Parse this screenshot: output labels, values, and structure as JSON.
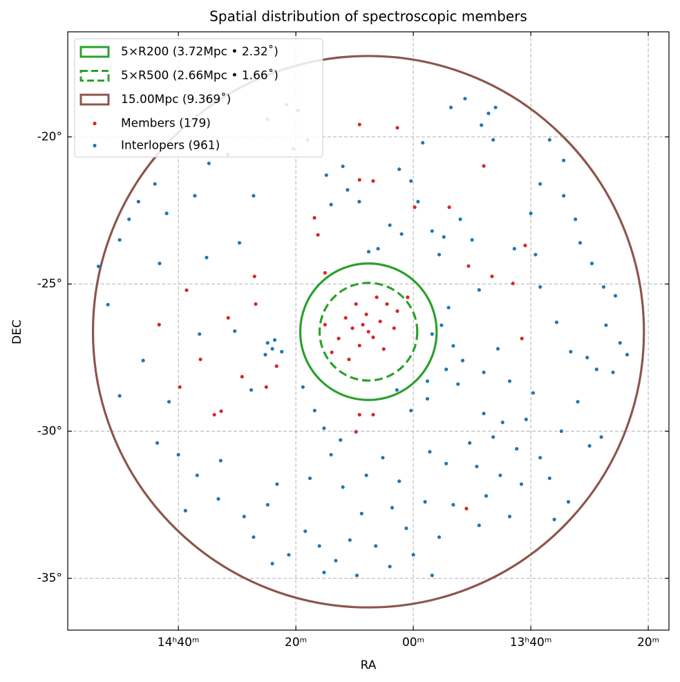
{
  "chart_data": {
    "type": "scatter",
    "title": "Spatial distribution of spectroscopic members",
    "x_label": "RA",
    "y_label": "DEC",
    "xlim": [
      224.71,
      199.12
    ],
    "ylim": [
      -36.76,
      -16.43
    ],
    "xticks": [
      {
        "value": 220,
        "label": "14ʰ40ᵐ"
      },
      {
        "value": 215,
        "label": "20ᵐ"
      },
      {
        "value": 210,
        "label": "00ᵐ"
      },
      {
        "value": 205,
        "label": "13ʰ40ᵐ"
      },
      {
        "value": 200,
        "label": "20ᵐ"
      }
    ],
    "yticks": [
      {
        "value": -20,
        "label": "-20°"
      },
      {
        "value": -25,
        "label": "-25°"
      },
      {
        "value": -30,
        "label": "-30°"
      },
      {
        "value": -35,
        "label": "-35°"
      }
    ],
    "grid": true,
    "legend": "upper left",
    "center_ra": 211.91,
    "center_dec": -26.62,
    "circles": [
      {
        "label": "5×R200 (3.72Mpc • 2.32˚)",
        "radius": 2.32,
        "color": "#2ca02c",
        "dashed": false
      },
      {
        "label": "5×R500 (2.66Mpc • 1.66˚)",
        "radius": 1.66,
        "color": "#2ca02c",
        "dashed": true
      },
      {
        "label": "15.00Mpc (9.369˚)",
        "radius": 9.369,
        "color": "#8c564b",
        "dashed": false
      }
    ],
    "series": [
      {
        "name": "Members (179)",
        "color": "#d62728",
        "x": [
          211.91,
          212.15,
          211.71,
          212.59,
          211.41,
          212.29,
          212.88,
          211.12,
          213.18,
          211.56,
          210.82,
          213.47,
          212.0,
          212.74,
          211.26,
          210.24,
          213.76,
          212.44,
          210.68,
          212.29,
          211.71,
          214.06,
          213.76,
          214.21,
          215.82,
          217.88,
          219.06,
          218.18,
          218.47,
          219.94,
          220.82,
          219.65,
          216.76,
          212.44,
          212.29,
          211.71,
          207.0,
          205.38,
          205.24,
          208.47,
          207.65,
          206.65,
          205.76,
          207.74,
          209.94,
          210.68,
          212.29,
          216.71,
          217.29,
          216.26
        ],
        "y": [
          -26.62,
          -26.38,
          -26.81,
          -26.5,
          -26.27,
          -27.09,
          -26.15,
          -25.68,
          -26.85,
          -25.45,
          -26.5,
          -27.32,
          -26.03,
          -27.56,
          -27.21,
          -25.45,
          -26.38,
          -25.68,
          -25.92,
          -21.46,
          -21.5,
          -23.33,
          -24.62,
          -22.75,
          -27.79,
          -26.15,
          -27.56,
          -29.32,
          -29.44,
          -28.5,
          -26.38,
          -25.21,
          -24.74,
          -30.02,
          -29.44,
          -29.44,
          -20.99,
          -26.85,
          -23.69,
          -22.39,
          -24.39,
          -24.74,
          -24.98,
          -32.63,
          -22.39,
          -19.69,
          -19.58,
          -25.68,
          -28.15,
          -28.5
        ]
      },
      {
        "name": "Interlopers (961)",
        "color": "#1f77b4",
        "x": [
          223.4,
          223.0,
          222.5,
          222.1,
          221.7,
          221.0,
          220.5,
          220.8,
          219.3,
          218.7,
          217.9,
          216.2,
          215.4,
          214.9,
          215.1,
          214.5,
          213.7,
          213.0,
          212.8,
          212.3,
          211.5,
          210.6,
          210.1,
          209.6,
          209.8,
          209.2,
          208.9,
          208.7,
          208.0,
          207.5,
          207.1,
          206.8,
          206.5,
          207.8,
          208.4,
          206.6,
          205.0,
          203.6,
          203.1,
          202.9,
          202.4,
          201.9,
          201.4,
          201.8,
          201.2,
          200.9,
          201.5,
          202.2,
          202.6,
          203.3,
          203.9,
          204.8,
          205.7,
          204.6,
          207.2,
          208.5,
          208.8,
          208.3,
          207.9,
          209.2,
          208.6,
          209.4,
          208.1,
          207.0,
          206.4,
          205.9,
          204.9,
          205.2,
          206.2,
          207.0,
          206.6,
          207.6,
          205.6,
          204.6,
          203.7,
          204.2,
          205.4,
          206.3,
          207.3,
          206.9,
          205.9,
          207.2,
          208.3,
          208.9,
          209.5,
          210.3,
          210.9,
          211.6,
          212.2,
          212.7,
          213.3,
          214.0,
          214.6,
          215.3,
          216.0,
          216.8,
          216.2,
          217.2,
          215.8,
          214.4,
          213.5,
          213.0,
          212.0,
          211.3,
          210.6,
          211.0,
          212.4,
          213.8,
          210.0,
          209.2,
          218.2,
          219.2,
          218.3,
          220.0,
          220.9,
          219.7,
          216.2,
          216.0,
          215.9,
          216.3,
          215.6,
          217.6,
          216.9,
          214.7,
          214.2,
          213.8,
          213.1,
          210.7,
          210.1,
          210.5,
          211.0,
          211.9,
          213.5,
          216.8,
          217.4,
          218.8,
          219.1,
          220.4,
          221.5,
          222.5,
          209.3,
          208.6,
          202.5,
          203.0,
          202.0,
          204.0,
          203.4,
          209.4,
          204.2,
          204.6,
          203.6
        ],
        "y": [
          -24.4,
          -25.7,
          -23.5,
          -22.8,
          -22.2,
          -21.6,
          -22.6,
          -24.3,
          -22.0,
          -20.9,
          -20.6,
          -19.4,
          -18.9,
          -19.1,
          -20.4,
          -20.1,
          -21.3,
          -21.0,
          -21.8,
          -22.2,
          -23.8,
          -21.1,
          -21.5,
          -20.2,
          -22.2,
          -23.2,
          -24.0,
          -23.4,
          -22.8,
          -23.5,
          -19.6,
          -19.2,
          -19.0,
          -18.7,
          -19.0,
          -20.1,
          -22.6,
          -22.0,
          -22.8,
          -23.6,
          -24.3,
          -25.1,
          -25.4,
          -26.4,
          -27.0,
          -27.4,
          -28.0,
          -27.9,
          -27.5,
          -27.3,
          -26.3,
          -24.0,
          -23.8,
          -25.1,
          -25.2,
          -25.8,
          -26.4,
          -27.1,
          -27.6,
          -26.7,
          -27.9,
          -28.3,
          -28.4,
          -28.0,
          -27.2,
          -28.3,
          -28.7,
          -29.6,
          -29.7,
          -29.4,
          -30.2,
          -30.4,
          -30.6,
          -30.9,
          -30.0,
          -31.6,
          -31.8,
          -31.5,
          -31.2,
          -32.2,
          -32.9,
          -33.2,
          -32.5,
          -33.6,
          -32.4,
          -33.3,
          -32.6,
          -33.9,
          -32.8,
          -33.7,
          -34.4,
          -33.9,
          -33.4,
          -34.2,
          -34.5,
          -33.6,
          -32.5,
          -32.9,
          -31.8,
          -31.6,
          -30.8,
          -31.9,
          -31.5,
          -30.9,
          -31.7,
          -34.6,
          -34.9,
          -34.8,
          -34.2,
          -34.9,
          -31.0,
          -31.5,
          -32.3,
          -30.8,
          -30.4,
          -32.7,
          -27.0,
          -27.2,
          -26.9,
          -27.4,
          -27.3,
          -26.6,
          -28.6,
          -28.5,
          -29.3,
          -29.9,
          -30.3,
          -28.6,
          -29.3,
          -23.3,
          -23.0,
          -23.9,
          -22.3,
          -22.0,
          -23.6,
          -24.1,
          -26.7,
          -29.0,
          -27.6,
          -28.8,
          -30.7,
          -31.1,
          -30.5,
          -29.0,
          -30.2,
          -33.0,
          -32.4,
          -28.9,
          -20.1,
          -21.6,
          -20.8
        ]
      }
    ]
  }
}
